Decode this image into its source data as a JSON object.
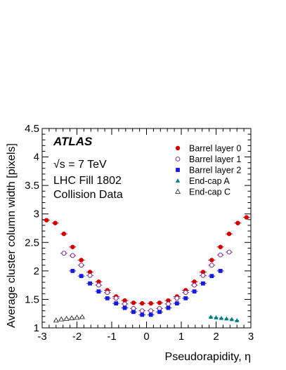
{
  "chart_data": {
    "type": "scatter",
    "title": "",
    "xlabel": "Pseudorapidity, η",
    "ylabel": "Average cluster column width [pixels]",
    "xlim": [
      -3,
      3
    ],
    "ylim": [
      1,
      4.5
    ],
    "xticks": [
      "-3",
      "-2",
      "-1",
      "0",
      "1",
      "2",
      "3"
    ],
    "yticks": [
      "1",
      "1.5",
      "2",
      "2.5",
      "3",
      "3.5",
      "4",
      "4.5"
    ],
    "grid": false,
    "legend_position": "top-right",
    "annotations": {
      "experiment": "ATLAS",
      "energy": "√s = 7 TeV",
      "fill": "LHC Fill 1802",
      "data_type": "Collision Data"
    },
    "series": [
      {
        "name": "Barrel layer 0",
        "marker": "filled-circle",
        "color": "#cc0000",
        "x": [
          -2.875,
          -2.625,
          -2.375,
          -2.125,
          -1.875,
          -1.625,
          -1.375,
          -1.125,
          -0.875,
          -0.625,
          -0.375,
          -0.125,
          0.125,
          0.375,
          0.625,
          0.875,
          1.125,
          1.375,
          1.625,
          1.875,
          2.125,
          2.375,
          2.625,
          2.875
        ],
        "y": [
          2.89,
          2.84,
          2.65,
          2.42,
          2.19,
          1.98,
          1.81,
          1.66,
          1.55,
          1.48,
          1.44,
          1.43,
          1.43,
          1.44,
          1.48,
          1.55,
          1.66,
          1.81,
          1.98,
          2.19,
          2.42,
          2.65,
          2.84,
          2.94
        ]
      },
      {
        "name": "Barrel layer 1",
        "marker": "open-circle",
        "color": "#7b2d8e",
        "x": [
          -2.375,
          -2.125,
          -1.875,
          -1.625,
          -1.375,
          -1.125,
          -0.875,
          -0.625,
          -0.375,
          -0.125,
          0.125,
          0.375,
          0.625,
          0.875,
          1.125,
          1.375,
          1.625,
          1.875,
          2.125,
          2.375
        ],
        "y": [
          2.31,
          2.27,
          2.1,
          1.92,
          1.75,
          1.62,
          1.52,
          1.42,
          1.34,
          1.3,
          1.3,
          1.34,
          1.42,
          1.52,
          1.62,
          1.75,
          1.92,
          2.1,
          2.28,
          2.33
        ]
      },
      {
        "name": "Barrel layer 2",
        "marker": "filled-square",
        "color": "#1a1ad6",
        "x": [
          -2.125,
          -1.875,
          -1.625,
          -1.375,
          -1.125,
          -0.875,
          -0.625,
          -0.375,
          -0.125,
          0.125,
          0.375,
          0.625,
          0.875,
          1.125,
          1.375,
          1.625,
          1.875,
          2.125
        ],
        "y": [
          2.0,
          1.91,
          1.78,
          1.64,
          1.52,
          1.43,
          1.35,
          1.28,
          1.23,
          1.23,
          1.28,
          1.35,
          1.43,
          1.52,
          1.64,
          1.78,
          1.91,
          2.0
        ]
      },
      {
        "name": "End-cap A",
        "marker": "filled-triangle",
        "color": "#007b7b",
        "x": [
          1.85,
          2.0,
          2.15,
          2.3,
          2.45,
          2.6
        ],
        "y": [
          1.19,
          1.18,
          1.17,
          1.16,
          1.15,
          1.13
        ]
      },
      {
        "name": "End-cap C",
        "marker": "open-triangle",
        "color": "#333333",
        "x": [
          -2.6,
          -2.45,
          -2.3,
          -2.15,
          -2.0,
          -1.85
        ],
        "y": [
          1.13,
          1.15,
          1.16,
          1.17,
          1.18,
          1.19
        ]
      }
    ]
  }
}
